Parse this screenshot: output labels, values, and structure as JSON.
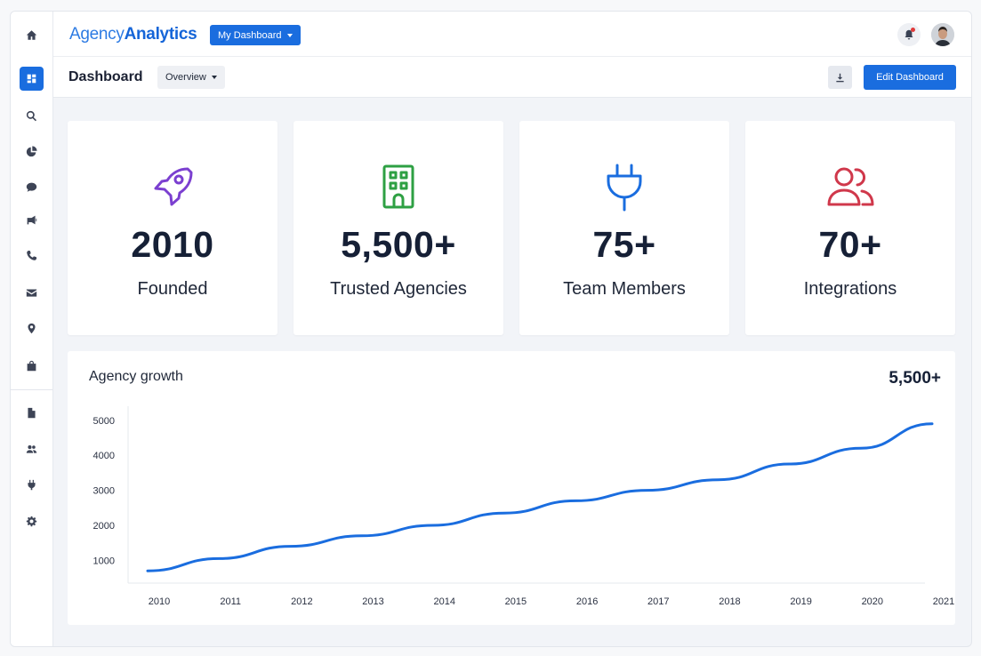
{
  "app": {
    "logo_part1": "Agency",
    "logo_part2": "Analytics",
    "dashboard_select": "My Dashboard",
    "accent": "#1a6ddf"
  },
  "sidebar": {
    "items": [
      {
        "icon": "home-icon"
      },
      {
        "icon": "dashboard-icon",
        "active": true
      },
      {
        "icon": "search-icon"
      },
      {
        "icon": "pie-chart-icon"
      },
      {
        "icon": "chat-icon"
      },
      {
        "icon": "megaphone-icon"
      },
      {
        "icon": "phone-icon"
      },
      {
        "icon": "mail-icon"
      },
      {
        "icon": "location-pin-icon"
      },
      {
        "icon": "shopping-bag-icon"
      },
      {
        "icon": "document-icon"
      },
      {
        "icon": "users-icon"
      },
      {
        "icon": "plug-icon"
      },
      {
        "icon": "gear-icon"
      }
    ]
  },
  "subheader": {
    "title": "Dashboard",
    "overview_select": "Overview",
    "edit_label": "Edit Dashboard"
  },
  "stats": [
    {
      "value": "2010",
      "label": "Founded",
      "icon": "rocket-icon",
      "color": "#7b3fd0"
    },
    {
      "value": "5,500+",
      "label": "Trusted Agencies",
      "icon": "building-icon",
      "color": "#2ea043"
    },
    {
      "value": "75+",
      "label": "Team Members",
      "icon": "plug-icon",
      "color": "#1a6ddf"
    },
    {
      "value": "70+",
      "label": "Integrations",
      "icon": "users-icon",
      "color": "#d0384b"
    }
  ],
  "chart": {
    "title": "Agency growth",
    "total": "5,500+"
  },
  "chart_data": {
    "type": "line",
    "title": "Agency growth",
    "x": [
      "2010",
      "2011",
      "2012",
      "2013",
      "2014",
      "2015",
      "2016",
      "2017",
      "2018",
      "2019",
      "2020",
      "2021"
    ],
    "series": [
      {
        "values": [
          700,
          1050,
          1400,
          1700,
          2000,
          2350,
          2700,
          3000,
          3300,
          3750,
          4200,
          4900
        ]
      }
    ],
    "yticks": [
      1000,
      2000,
      3000,
      4000,
      5000
    ],
    "ylim": [
      350,
      5400
    ],
    "grid": false,
    "line_color": "#1a6ddf"
  }
}
